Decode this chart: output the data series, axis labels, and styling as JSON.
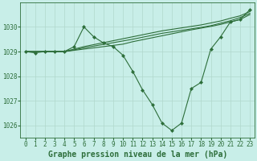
{
  "background_color": "#c8eee8",
  "grid_color": "#b0d8cc",
  "line_color": "#2d6e3a",
  "title": "Graphe pression niveau de la mer (hPa)",
  "xlim": [
    -0.5,
    23.5
  ],
  "ylim": [
    1025.5,
    1031.0
  ],
  "yticks": [
    1026,
    1027,
    1028,
    1029,
    1030
  ],
  "xticks": [
    0,
    1,
    2,
    3,
    4,
    5,
    6,
    7,
    8,
    9,
    10,
    11,
    12,
    13,
    14,
    15,
    16,
    17,
    18,
    19,
    20,
    21,
    22,
    23
  ],
  "series": {
    "main": [
      1029.0,
      1028.95,
      1029.0,
      1029.0,
      1029.0,
      1029.2,
      1030.0,
      1029.6,
      1029.35,
      1029.2,
      1028.85,
      1028.2,
      1027.45,
      1026.85,
      1026.1,
      1025.8,
      1026.1,
      1027.5,
      1027.75,
      1029.1,
      1029.6,
      1030.2,
      1030.3,
      1030.7
    ],
    "line2": [
      1029.0,
      1029.0,
      1029.0,
      1029.0,
      1029.0,
      1029.05,
      1029.1,
      1029.15,
      1029.2,
      1029.25,
      1029.3,
      1029.4,
      1029.48,
      1029.56,
      1029.64,
      1029.72,
      1029.8,
      1029.88,
      1029.95,
      1030.02,
      1030.1,
      1030.2,
      1030.3,
      1030.5
    ],
    "line3": [
      1029.0,
      1029.0,
      1029.0,
      1029.0,
      1029.0,
      1029.07,
      1029.15,
      1029.22,
      1029.29,
      1029.36,
      1029.43,
      1029.5,
      1029.58,
      1029.66,
      1029.74,
      1029.8,
      1029.86,
      1029.92,
      1029.98,
      1030.05,
      1030.15,
      1030.25,
      1030.38,
      1030.55
    ],
    "line4": [
      1029.0,
      1029.0,
      1029.0,
      1029.0,
      1029.0,
      1029.1,
      1029.2,
      1029.28,
      1029.36,
      1029.44,
      1029.52,
      1029.6,
      1029.68,
      1029.76,
      1029.84,
      1029.9,
      1029.96,
      1030.02,
      1030.08,
      1030.16,
      1030.24,
      1030.35,
      1030.45,
      1030.62
    ]
  },
  "marker": "D",
  "markersize": 2.0,
  "linewidth": 0.8,
  "title_fontsize": 7,
  "tick_fontsize": 5.5
}
